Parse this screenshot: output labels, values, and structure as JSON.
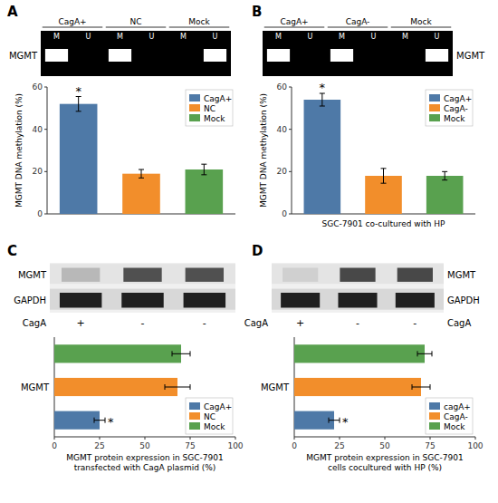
{
  "chart_data": [
    {
      "type": "gel",
      "title": "A",
      "categories": [
        "M",
        "U",
        "M",
        "U",
        "M",
        "U"
      ],
      "groups": [
        "CagA+",
        "NC",
        "Mock"
      ],
      "bands": [
        0,
        2,
        5
      ],
      "ylabel": "MGMT",
      "color": "#ffffff"
    },
    {
      "type": "bar",
      "categories": [
        "CagA+",
        "NC",
        "Mock"
      ],
      "values": [
        52,
        19,
        21
      ],
      "errors": [
        3.5,
        2.0,
        2.5
      ],
      "colors": [
        "#4e79a7",
        "#f28e2b",
        "#59a14f"
      ],
      "ylabel": "MGMT DNA methylation (%)",
      "ylim": [
        0,
        60
      ],
      "yticks": [
        0,
        20,
        40,
        60
      ],
      "tick_labels": "y",
      "legend": "upper right",
      "annotations": [
        {
          "label": "*",
          "category": "CagA+"
        }
      ]
    },
    {
      "type": "gel",
      "title": "B",
      "categories": [
        "M",
        "U",
        "M",
        "U",
        "M",
        "U"
      ],
      "groups": [
        "CagA+",
        "CagA-",
        "Mock"
      ],
      "bands": [
        0,
        2,
        5
      ],
      "ylabel": "MGMT",
      "color": "#ffffff"
    },
    {
      "type": "bar",
      "categories": [
        "CagA+",
        "CagA-",
        "Mock"
      ],
      "values": [
        54,
        18,
        18
      ],
      "errors": [
        3.0,
        3.5,
        2.0
      ],
      "colors": [
        "#4e79a7",
        "#f28e2b",
        "#59a14f"
      ],
      "ylabel": "MGMT DNA methylation (%)",
      "xlabel": "SGC-7901 co-cultured with HP",
      "ylim": [
        0,
        60
      ],
      "yticks": [
        0,
        20,
        40,
        60
      ],
      "tick_labels": "y",
      "legend": "upper right",
      "annotations": [
        {
          "label": "*",
          "category": "CagA+"
        }
      ]
    },
    {
      "type": "blot",
      "title": "C",
      "categories": [
        "+",
        "-",
        "-"
      ],
      "xlabel": "CagA",
      "series": [
        {
          "name": "MGMT",
          "colors": [
            "#b8b8b8",
            "#505050",
            "#505050"
          ]
        },
        {
          "name": "GAPDH",
          "colors": [
            "#202020",
            "#202020",
            "#202020"
          ]
        }
      ]
    },
    {
      "type": "bar",
      "orientation": "horizontal",
      "categories": [
        "CagA+",
        "NC",
        "Mock"
      ],
      "values": [
        25,
        68,
        70
      ],
      "errors": [
        3.0,
        7.0,
        5.0
      ],
      "colors": [
        "#4e79a7",
        "#f28e2b",
        "#59a14f"
      ],
      "ylabel": "MGMT",
      "xlabel": "MGMT protein expression in SGC-7901\ntransfected with CagA plasmid  (%)",
      "xlim": [
        0,
        100
      ],
      "xticks": [
        0,
        25,
        50,
        75,
        100
      ],
      "tick_labels": "x",
      "legend": "lower right",
      "annotations": [
        {
          "label": "*",
          "category": "CagA+"
        }
      ]
    },
    {
      "type": "blot",
      "title": "D",
      "categories": [
        "+",
        "-",
        "-"
      ],
      "xlabel": "CagA",
      "series": [
        {
          "name": "MGMT",
          "colors": [
            "#d0d0d0",
            "#484848",
            "#484848"
          ]
        },
        {
          "name": "GAPDH",
          "colors": [
            "#202020",
            "#202020",
            "#202020"
          ]
        }
      ]
    },
    {
      "type": "bar",
      "orientation": "horizontal",
      "categories": [
        "cagA+",
        "CagA-",
        "Mock"
      ],
      "values": [
        22,
        70,
        72
      ],
      "errors": [
        3.0,
        5.0,
        4.0
      ],
      "colors": [
        "#4e79a7",
        "#f28e2b",
        "#59a14f"
      ],
      "ylabel": "MGMT",
      "xlabel": "MGMT protein expression in SGC-7901\ncells cocultured with HP  (%)",
      "xlim": [
        0,
        100
      ],
      "xticks": [
        0,
        25,
        50,
        75,
        100
      ],
      "tick_labels": "x",
      "legend": "lower right",
      "annotations": [
        {
          "label": "*",
          "category": "cagA+"
        }
      ]
    }
  ]
}
